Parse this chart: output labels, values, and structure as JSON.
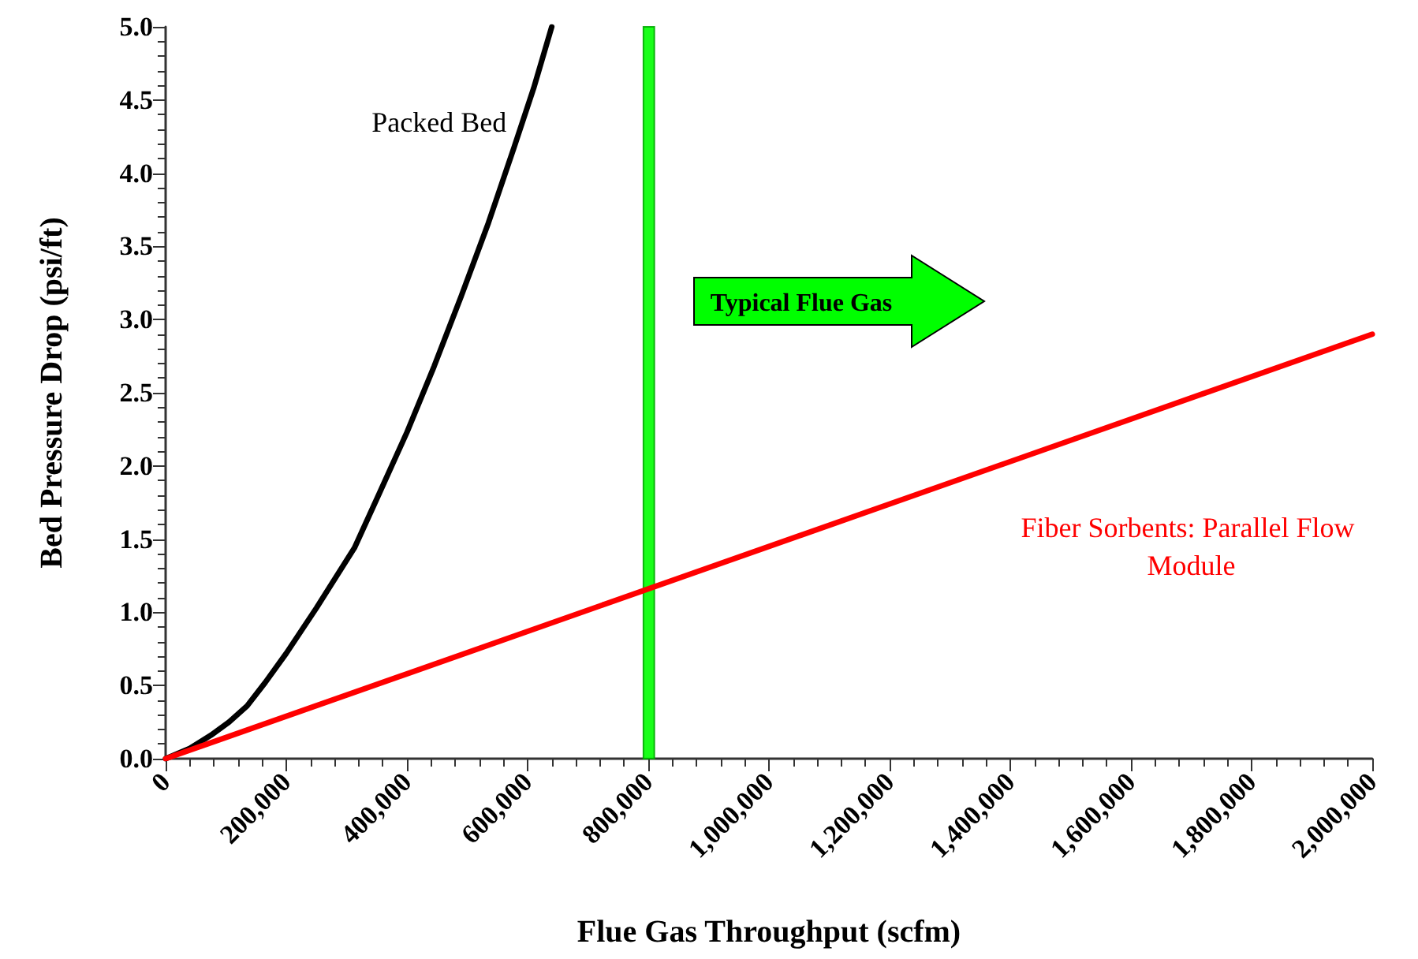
{
  "chart_data": {
    "type": "line",
    "xlabel": "Flue Gas Throughput (scfm)",
    "ylabel": "Bed Pressure Drop (psi/ft)",
    "series": [
      {
        "name": "Packed Bed",
        "color": "#000000",
        "x": [
          0,
          40000,
          75000,
          105000,
          135000,
          165000,
          200000,
          250000,
          313000,
          355000,
          400000,
          445000,
          490000,
          535000,
          577000,
          610000,
          640000
        ],
        "values": [
          0,
          0.07,
          0.16,
          0.25,
          0.36,
          0.52,
          0.72,
          1.03,
          1.44,
          1.82,
          2.23,
          2.68,
          3.16,
          3.66,
          4.17,
          4.58,
          5.0
        ]
      },
      {
        "name": "Fiber Sorbents: Parallel Flow Module",
        "color": "#ff0000",
        "x": [
          0,
          2000000
        ],
        "values": [
          0,
          2.9
        ]
      }
    ],
    "bands": [
      {
        "axis": "x",
        "from": 792000,
        "to": 810000,
        "color": "#00ff00"
      }
    ],
    "annotations": [
      "Typical Flue Gas"
    ],
    "xlim": [
      0,
      2000000
    ],
    "xticks": [
      {
        "value": 0,
        "label": "0"
      },
      {
        "value": 200000,
        "label": "200,000"
      },
      {
        "value": 400000,
        "label": "400,000"
      },
      {
        "value": 600000,
        "label": "600,000"
      },
      {
        "value": 800000,
        "label": "800,000"
      },
      {
        "value": 1000000,
        "label": "1,000,000"
      },
      {
        "value": 1200000,
        "label": "1,200,000"
      },
      {
        "value": 1400000,
        "label": "1,400,000"
      },
      {
        "value": 1600000,
        "label": "1,600,000"
      },
      {
        "value": 1800000,
        "label": "1,800,000"
      },
      {
        "value": 2000000,
        "label": "2,000,000"
      }
    ],
    "ylim": [
      0,
      5
    ],
    "yticks": [
      {
        "value": 0,
        "label": "0.0"
      },
      {
        "value": 0.5,
        "label": "0.5"
      },
      {
        "value": 1,
        "label": "1.0"
      },
      {
        "value": 1.5,
        "label": "1.5"
      },
      {
        "value": 2,
        "label": "2.0"
      },
      {
        "value": 2.5,
        "label": "2.5"
      },
      {
        "value": 3,
        "label": "3.0"
      },
      {
        "value": 3.5,
        "label": "3.5"
      },
      {
        "value": 4,
        "label": "4.0"
      },
      {
        "value": 4.5,
        "label": "4.5"
      },
      {
        "value": 5,
        "label": "5.0"
      }
    ],
    "grid": false,
    "legend": false,
    "marker": "none",
    "line_style": "solid"
  }
}
